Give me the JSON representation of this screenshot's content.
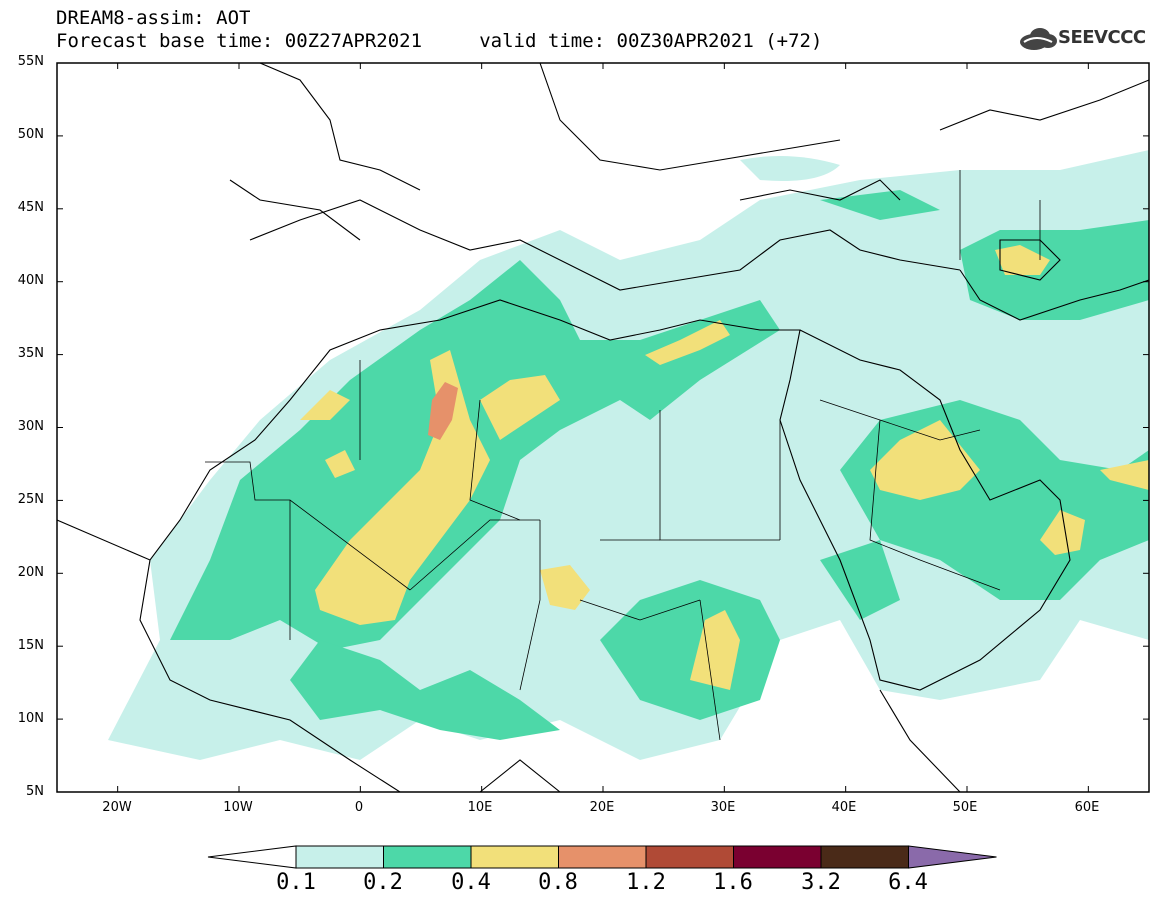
{
  "header": {
    "title": "DREAM8-assim: AOT",
    "subtitle": "Forecast base time: 00Z27APR2021     valid time: 00Z30APR2021 (+72)"
  },
  "logo": {
    "text": "SEEVCCC",
    "icon": "cloud-icon"
  },
  "map": {
    "lon_range": [
      -25,
      65
    ],
    "lat_range": [
      5,
      55
    ],
    "lat_labels": [
      "55N",
      "50N",
      "45N",
      "40N",
      "35N",
      "30N",
      "25N",
      "20N",
      "15N",
      "10N",
      "5N"
    ],
    "lon_labels": [
      "20W",
      "10W",
      "0",
      "10E",
      "20E",
      "30E",
      "40E",
      "50E",
      "60E"
    ]
  },
  "colorbar": {
    "levels": [
      "0.1",
      "0.2",
      "0.4",
      "0.8",
      "1.2",
      "1.6",
      "3.2",
      "6.4"
    ],
    "colors": [
      "#ffffff",
      "#c7f0ea",
      "#4dd8a8",
      "#f2e07a",
      "#e6916a",
      "#b04a36",
      "#7a0030",
      "#4a2a18",
      "#8a6aaa"
    ]
  }
}
